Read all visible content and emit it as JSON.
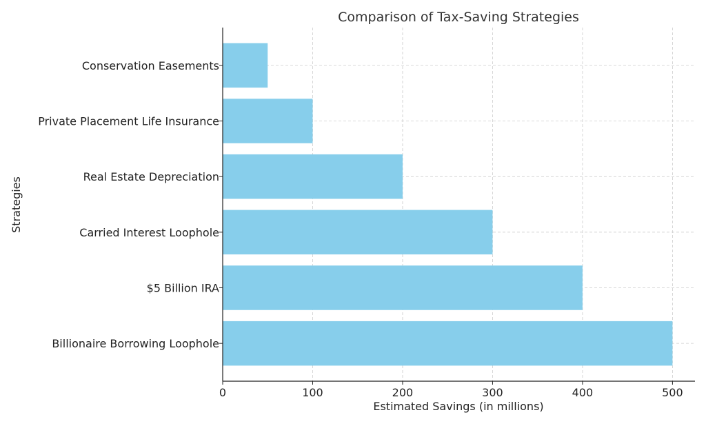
{
  "chart_data": {
    "type": "bar",
    "orientation": "horizontal",
    "title": "Comparison of Tax-Saving Strategies",
    "xlabel": "Estimated Savings (in millions)",
    "ylabel": "Strategies",
    "categories": [
      "Billionaire Borrowing Loophole",
      "$5 Billion IRA",
      "Carried Interest Loophole",
      "Real Estate Depreciation",
      "Private Placement Life Insurance",
      "Conservation Easements"
    ],
    "values": [
      500,
      400,
      300,
      200,
      100,
      50
    ],
    "xlim": [
      0,
      525
    ],
    "xticks": [
      0,
      100,
      200,
      300,
      400,
      500
    ],
    "grid": true,
    "bar_color": "#87CEEB"
  }
}
